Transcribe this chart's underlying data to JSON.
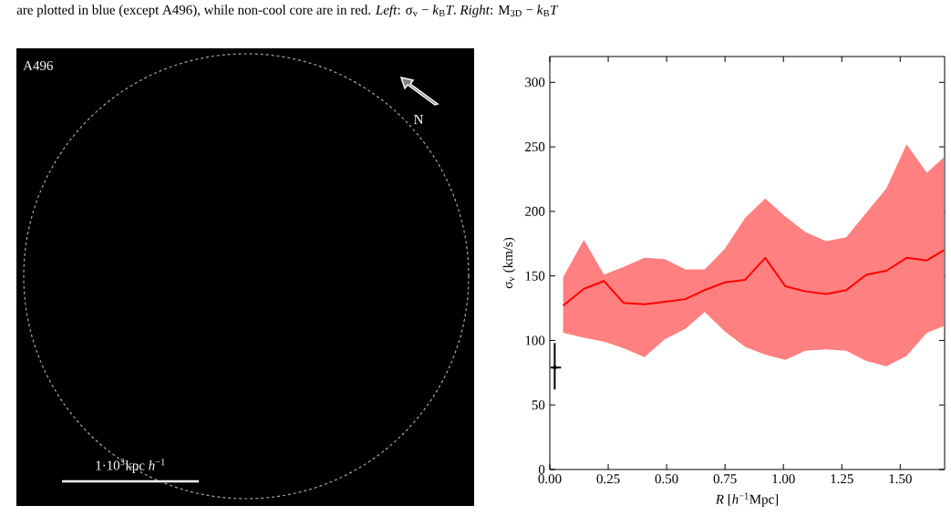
{
  "chart_data": {
    "type": "line",
    "xlabel": "*R* [*h*$^{−1}$Mpc]",
    "ylabel": "σ$_{v}$ (km/s)",
    "xlim": [
      0,
      1.69
    ],
    "ylim": [
      0,
      320
    ],
    "xticks": [
      {
        "value": 0,
        "label": "0.00"
      },
      {
        "value": 0.25,
        "label": "0.25"
      },
      {
        "value": 0.5,
        "label": "0.50"
      },
      {
        "value": 0.75,
        "label": "0.75"
      },
      {
        "value": 1,
        "label": "1.00"
      },
      {
        "value": 1.25,
        "label": "1.25"
      },
      {
        "value": 1.5,
        "label": "1.50"
      }
    ],
    "yticks": [
      0,
      50,
      100,
      150,
      200,
      250,
      300
    ],
    "grid": false,
    "series": [
      {
        "color": "#ff0000",
        "x": [
          0.057,
          0.146,
          0.232,
          0.316,
          0.405,
          0.493,
          0.58,
          0.663,
          0.749,
          0.836,
          0.922,
          1.008,
          1.094,
          1.183,
          1.269,
          1.355,
          1.441,
          1.527,
          1.614,
          1.687
        ],
        "values": [
          127,
          140,
          146,
          129,
          128,
          130,
          132,
          139,
          145,
          147,
          164,
          142,
          138,
          136,
          139,
          151,
          154,
          164,
          162,
          170
        ],
        "lower": [
          106,
          102,
          99,
          94,
          87,
          101,
          109,
          122,
          107,
          95,
          89,
          85,
          92,
          93,
          92,
          84,
          80,
          88,
          106,
          111
        ],
        "upper": [
          149,
          178,
          151,
          157,
          164,
          163,
          155,
          155,
          171,
          195,
          210,
          196,
          184,
          177,
          180,
          199,
          218,
          252,
          230,
          242
        ]
      },
      {
        "type": "scatter",
        "color": "#000000",
        "x": [
          0.021
        ],
        "values": [
          79
        ],
        "errors": [
          [
            62,
            98
          ]
        ],
        "xerrors": [
          [
            0.003,
            0.048
          ]
        ]
      }
    ],
    "annotations": [
      "are plotted in blue (except A496), while non-cool core are in red. *Left*: σ$_{v}$ − *k*$_{B}$*T*. *Right*: M$_{3D}$ − *k*$_{B}$*T*",
      "A496",
      "N",
      "1·10$^{3}$kpc *h*$^{−1}$"
    ]
  }
}
